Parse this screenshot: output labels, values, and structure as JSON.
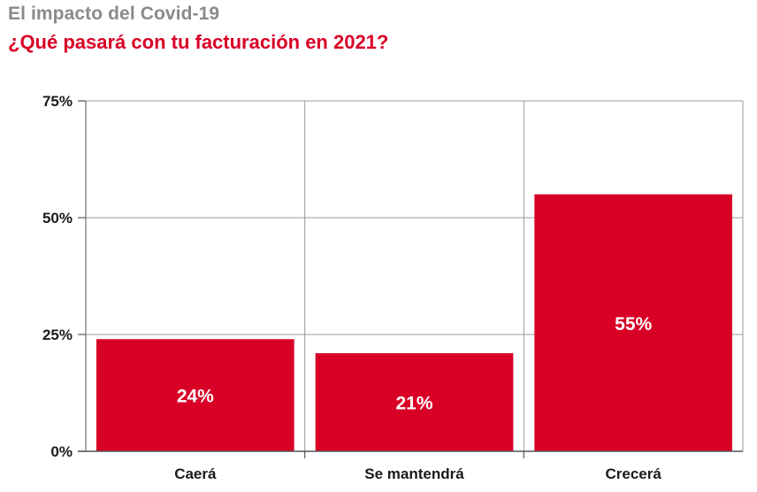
{
  "header": {
    "title": "El impacto del Covid-19",
    "subtitle": "¿Qué pasará con tu facturación en 2021?"
  },
  "colors": {
    "bar": "#d90026",
    "subtitle": "#d90026",
    "title": "#8a8a8a",
    "grid": "#9a9a9a",
    "axis": "#555555"
  },
  "chart_data": {
    "type": "bar",
    "title": "El impacto del Covid-19",
    "subtitle": "¿Qué pasará con tu facturación en 2021?",
    "xlabel": "",
    "ylabel": "",
    "categories": [
      "Caerá",
      "Se mantendrá",
      "Crecerá"
    ],
    "values": [
      24,
      21,
      55
    ],
    "data_labels": [
      "24%",
      "21%",
      "55%"
    ],
    "ylim": [
      0,
      75
    ],
    "yticks": [
      0,
      25,
      50,
      75
    ],
    "ytick_labels": [
      "0%",
      "25%",
      "50%",
      "75%"
    ],
    "grid": true,
    "legend": "none"
  }
}
